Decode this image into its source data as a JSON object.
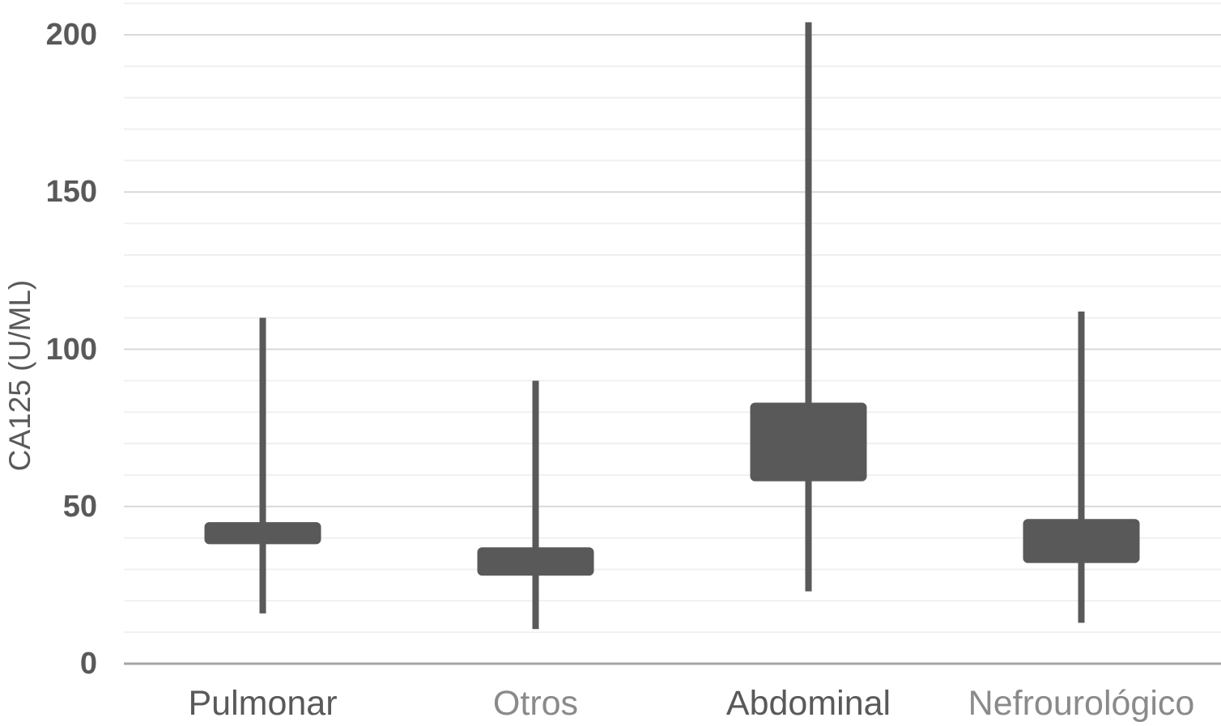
{
  "chart_data": {
    "type": "boxplot",
    "title": "",
    "xlabel": "",
    "ylabel": "CA125 (U/ML)",
    "categories": [
      "Pulmonar",
      "Otros",
      "Abdominal",
      "Nefrourológico"
    ],
    "series": [
      {
        "name": "CA125",
        "points": [
          {
            "category": "Pulmonar",
            "whisker_low": 16,
            "box_low": 38,
            "box_high": 45,
            "whisker_high": 110
          },
          {
            "category": "Otros",
            "whisker_low": 11,
            "box_low": 28,
            "box_high": 37,
            "whisker_high": 90
          },
          {
            "category": "Abdominal",
            "whisker_low": 23,
            "box_low": 58,
            "box_high": 83,
            "whisker_high": 204
          },
          {
            "category": "Nefrourológico",
            "whisker_low": 13,
            "box_low": 32,
            "box_high": 46,
            "whisker_high": 112
          }
        ]
      }
    ],
    "ylim": [
      0,
      210
    ],
    "yticks": [
      0,
      50,
      100,
      150,
      200
    ],
    "grid": {
      "show": true,
      "minor_interval": 10,
      "major_interval": 50
    },
    "legend": "none",
    "colors": {
      "box_fill": "#595959",
      "whisker": "#595959",
      "major_gridline": "#d9d9d9",
      "minor_gridline": "#f0f0f0",
      "axis_line": "#a6a6a6",
      "tick_label": "#595959",
      "axis_title": "#595959",
      "category_label_colors": [
        "#595959",
        "#8a8a8a",
        "#595959",
        "#8a8a8a"
      ]
    }
  }
}
